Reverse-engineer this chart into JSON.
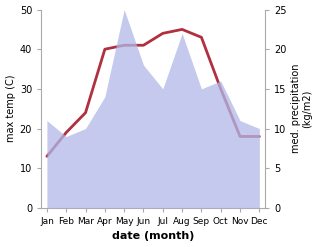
{
  "months": [
    "Jan",
    "Feb",
    "Mar",
    "Apr",
    "May",
    "Jun",
    "Jul",
    "Aug",
    "Sep",
    "Oct",
    "Nov",
    "Dec"
  ],
  "temperature": [
    13,
    19,
    24,
    40,
    41,
    41,
    44,
    45,
    43,
    30,
    18,
    18
  ],
  "precipitation": [
    11,
    9,
    10,
    14,
    25,
    18,
    15,
    22,
    15,
    16,
    11,
    10
  ],
  "temp_ylim": [
    0,
    50
  ],
  "precip_ylim": [
    0,
    25
  ],
  "temp_color": "#b03040",
  "precip_fill_color": "#b0b8e8",
  "precip_fill_alpha": 0.75,
  "xlabel": "date (month)",
  "ylabel_left": "max temp (C)",
  "ylabel_right": "med. precipitation\n(kg/m2)",
  "bg_color": "#ffffff",
  "temp_linewidth": 2.0,
  "left_ticks": [
    0,
    10,
    20,
    30,
    40,
    50
  ],
  "right_ticks": [
    0,
    5,
    10,
    15,
    20,
    25
  ],
  "xlabel_fontsize": 8,
  "ylabel_fontsize": 7,
  "tick_fontsize": 7
}
